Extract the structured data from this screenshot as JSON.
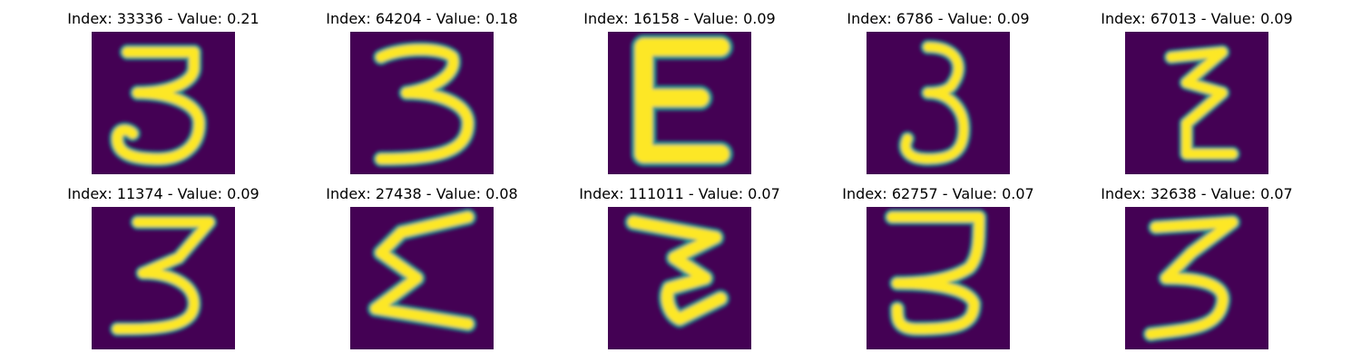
{
  "figure": {
    "background": "#ffffff",
    "colormap": {
      "name": "viridis",
      "low": "#440154",
      "mid": "#21918c",
      "high": "#fde725"
    },
    "panels": [
      {
        "title": "Index: 33336 - Value: 0.21",
        "index": 33336,
        "value": 0.21,
        "depicts": "3"
      },
      {
        "title": "Index: 64204 - Value: 0.18",
        "index": 64204,
        "value": 0.18,
        "depicts": "3"
      },
      {
        "title": "Index: 16158 - Value: 0.09",
        "index": 16158,
        "value": 0.09,
        "depicts": "E"
      },
      {
        "title": "Index: 6786 - Value: 0.09",
        "index": 6786,
        "value": 0.09,
        "depicts": "3"
      },
      {
        "title": "Index: 67013 - Value: 0.09",
        "index": 67013,
        "value": 0.09,
        "depicts": "3"
      },
      {
        "title": "Index: 11374 - Value: 0.09",
        "index": 11374,
        "value": 0.09,
        "depicts": "3"
      },
      {
        "title": "Index: 27438 - Value: 0.08",
        "index": 27438,
        "value": 0.08,
        "depicts": "Σ"
      },
      {
        "title": "Index: 111011 - Value: 0.07",
        "index": 111011,
        "value": 0.07,
        "depicts": "3"
      },
      {
        "title": "Index: 62757 - Value: 0.07",
        "index": 62757,
        "value": 0.07,
        "depicts": "3"
      },
      {
        "title": "Index: 32638 - Value: 0.07",
        "index": 32638,
        "value": 0.07,
        "depicts": "3"
      }
    ]
  }
}
